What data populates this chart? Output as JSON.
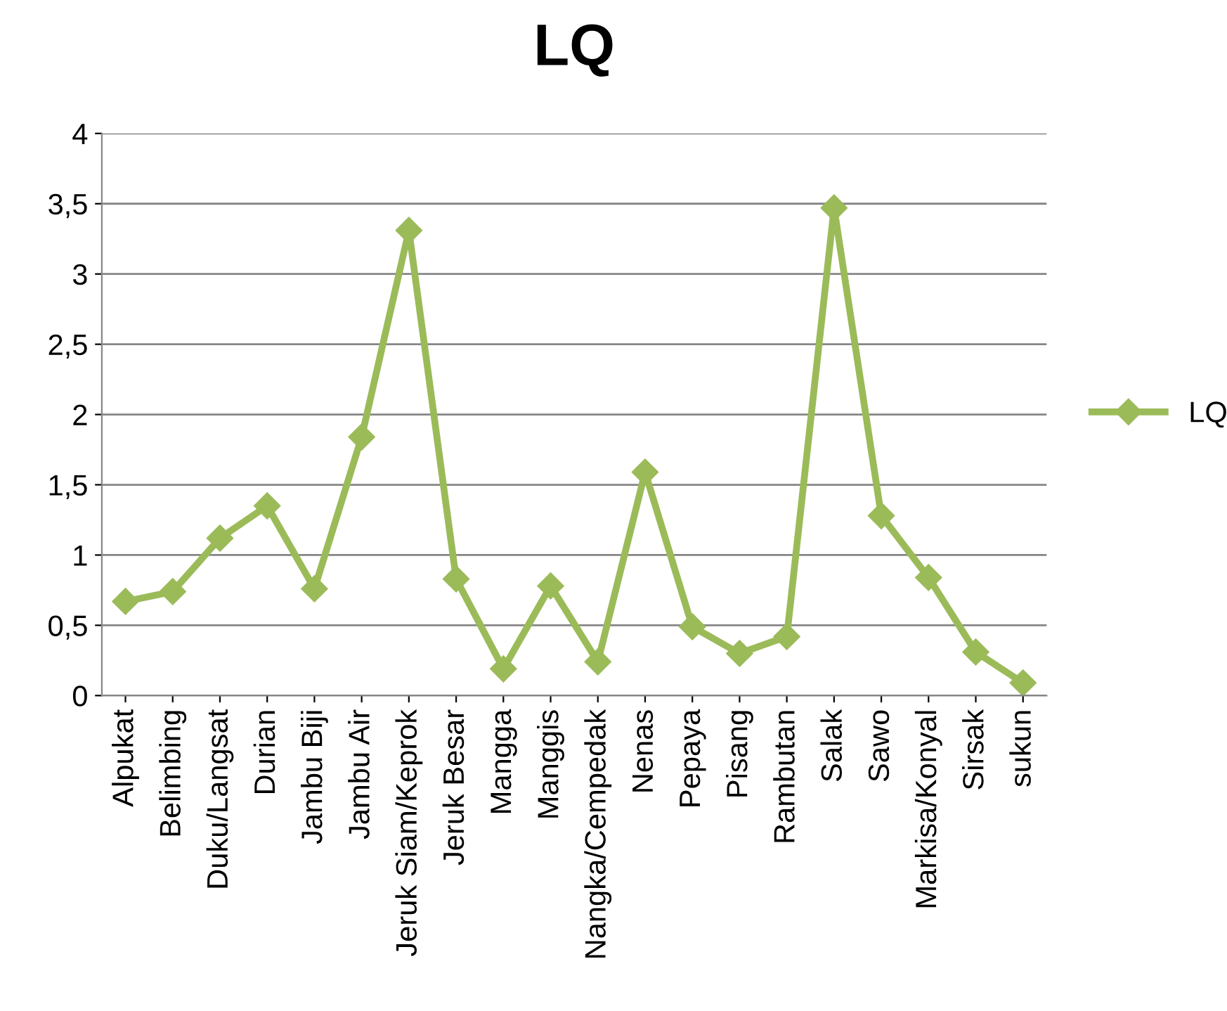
{
  "chart_data": {
    "type": "line",
    "title": "LQ",
    "categories": [
      "Alpukat",
      "Belimbing",
      "Duku/Langsat",
      "Durian",
      "Jambu Biji",
      "Jambu Air",
      "Jeruk Siam/Keprok",
      "Jeruk Besar",
      "Mangga",
      "Manggis",
      "Nangka/Cempedak",
      "Nenas",
      "Pepaya",
      "Pisang",
      "Rambutan",
      "Salak",
      "Sawo",
      "Markisa/Konyal",
      "Sirsak",
      "sukun"
    ],
    "series": [
      {
        "name": "LQ",
        "color": "#9bbb59",
        "values": [
          0.67,
          0.74,
          1.12,
          1.35,
          0.76,
          1.84,
          3.31,
          0.83,
          0.19,
          0.78,
          0.24,
          1.59,
          0.49,
          0.3,
          0.42,
          3.47,
          1.28,
          0.84,
          0.31,
          0.09
        ]
      }
    ],
    "ylim": [
      0,
      4
    ],
    "yticks": [
      0,
      {
        "value": 0.5,
        "label": "0,5"
      },
      1,
      {
        "value": 1.5,
        "label": "1,5"
      },
      2,
      {
        "value": 2.5,
        "label": "2,5"
      },
      3,
      {
        "value": 3.5,
        "label": "3,5"
      },
      4
    ],
    "grid": "y",
    "legend": "right",
    "marker": "diamond",
    "line_style": "solid"
  }
}
